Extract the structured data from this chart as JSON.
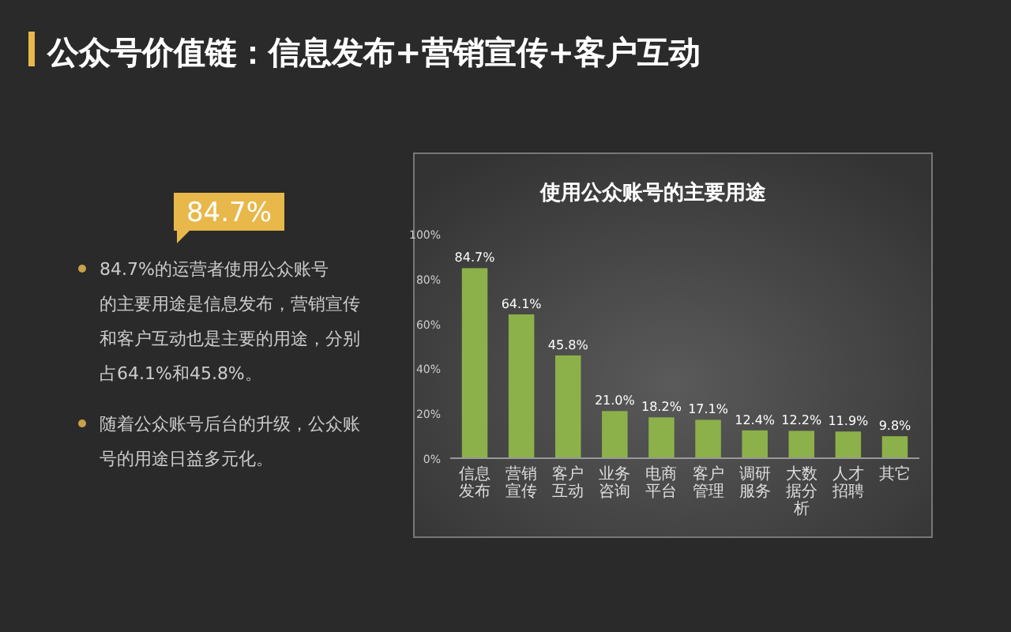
{
  "chart_data": {
    "type": "bar",
    "title": "使用公众账号的主要用途",
    "categories": [
      "信息发布",
      "营销宣传",
      "客户互动",
      "业务咨询",
      "电商平台",
      "客户管理",
      "调研服务",
      "大数据分析",
      "人才招聘",
      "其它"
    ],
    "values": [
      84.7,
      64.1,
      45.8,
      21.0,
      18.2,
      17.1,
      12.4,
      12.2,
      11.9,
      9.8
    ],
    "value_labels": [
      "84.7%",
      "64.1%",
      "45.8%",
      "21.0%",
      "18.2%",
      "17.1%",
      "12.4%",
      "12.2%",
      "11.9%",
      "9.8%"
    ],
    "color": "#8db14a",
    "ylim": [
      0,
      100
    ],
    "yticks": [
      {
        "value": 0,
        "label": "0%"
      },
      {
        "value": 20,
        "label": "20%"
      },
      {
        "value": 40,
        "label": "40%"
      },
      {
        "value": 60,
        "label": "60%"
      },
      {
        "value": 80,
        "label": "80%"
      },
      {
        "value": 100,
        "label": "100%"
      }
    ],
    "grid": false,
    "annotations": [
      "公众号价值链：信息发布+营销宣传+客户互动",
      "84.7%",
      "84.7%的运营者使用公众账号的主要用途是信息发布，营销宣传和客户互动也是主要的用途，分别占64.1%和45.8%。",
      "随着公众账号后台的升级，公众账号的用途日益多元化。"
    ]
  }
}
